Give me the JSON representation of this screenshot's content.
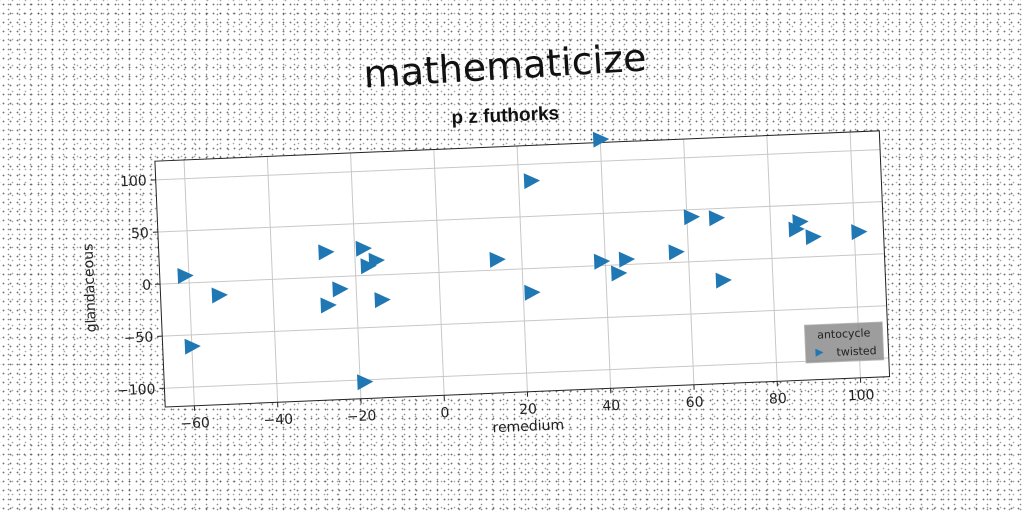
{
  "chart_data": {
    "type": "scatter",
    "title": "mathematicize",
    "subtitle": "p z futhorks",
    "xlabel": "remedium",
    "ylabel": "glandaceous",
    "xlim": [
      -67,
      107
    ],
    "ylim": [
      -118,
      118
    ],
    "xticks": [
      -60,
      -40,
      -20,
      0,
      20,
      40,
      60,
      80,
      100
    ],
    "yticks": [
      -100,
      -50,
      0,
      50,
      100
    ],
    "grid": true,
    "legend": {
      "title": "antocycle",
      "placement": "bottom-right"
    },
    "marker": "triangle-right",
    "color": "#1f77b4",
    "series": [
      {
        "name": "twisted",
        "points": [
          [
            -61,
            7
          ],
          [
            -53,
            -13
          ],
          [
            -60,
            -61
          ],
          [
            -27,
            24
          ],
          [
            -18,
            26
          ],
          [
            -17,
            9
          ],
          [
            -15,
            14
          ],
          [
            -24,
            -12
          ],
          [
            -27,
            -27
          ],
          [
            -14,
            -24
          ],
          [
            -19,
            -102
          ],
          [
            14,
            10
          ],
          [
            23,
            84
          ],
          [
            22,
            -23
          ],
          [
            40,
            121
          ],
          [
            39,
            4
          ],
          [
            45,
            5
          ],
          [
            43,
            -8
          ],
          [
            57,
            10
          ],
          [
            61,
            43
          ],
          [
            67,
            41
          ],
          [
            68,
            -19
          ],
          [
            87,
            34
          ],
          [
            86,
            27
          ],
          [
            90,
            19
          ],
          [
            101,
            22
          ]
        ]
      }
    ]
  }
}
